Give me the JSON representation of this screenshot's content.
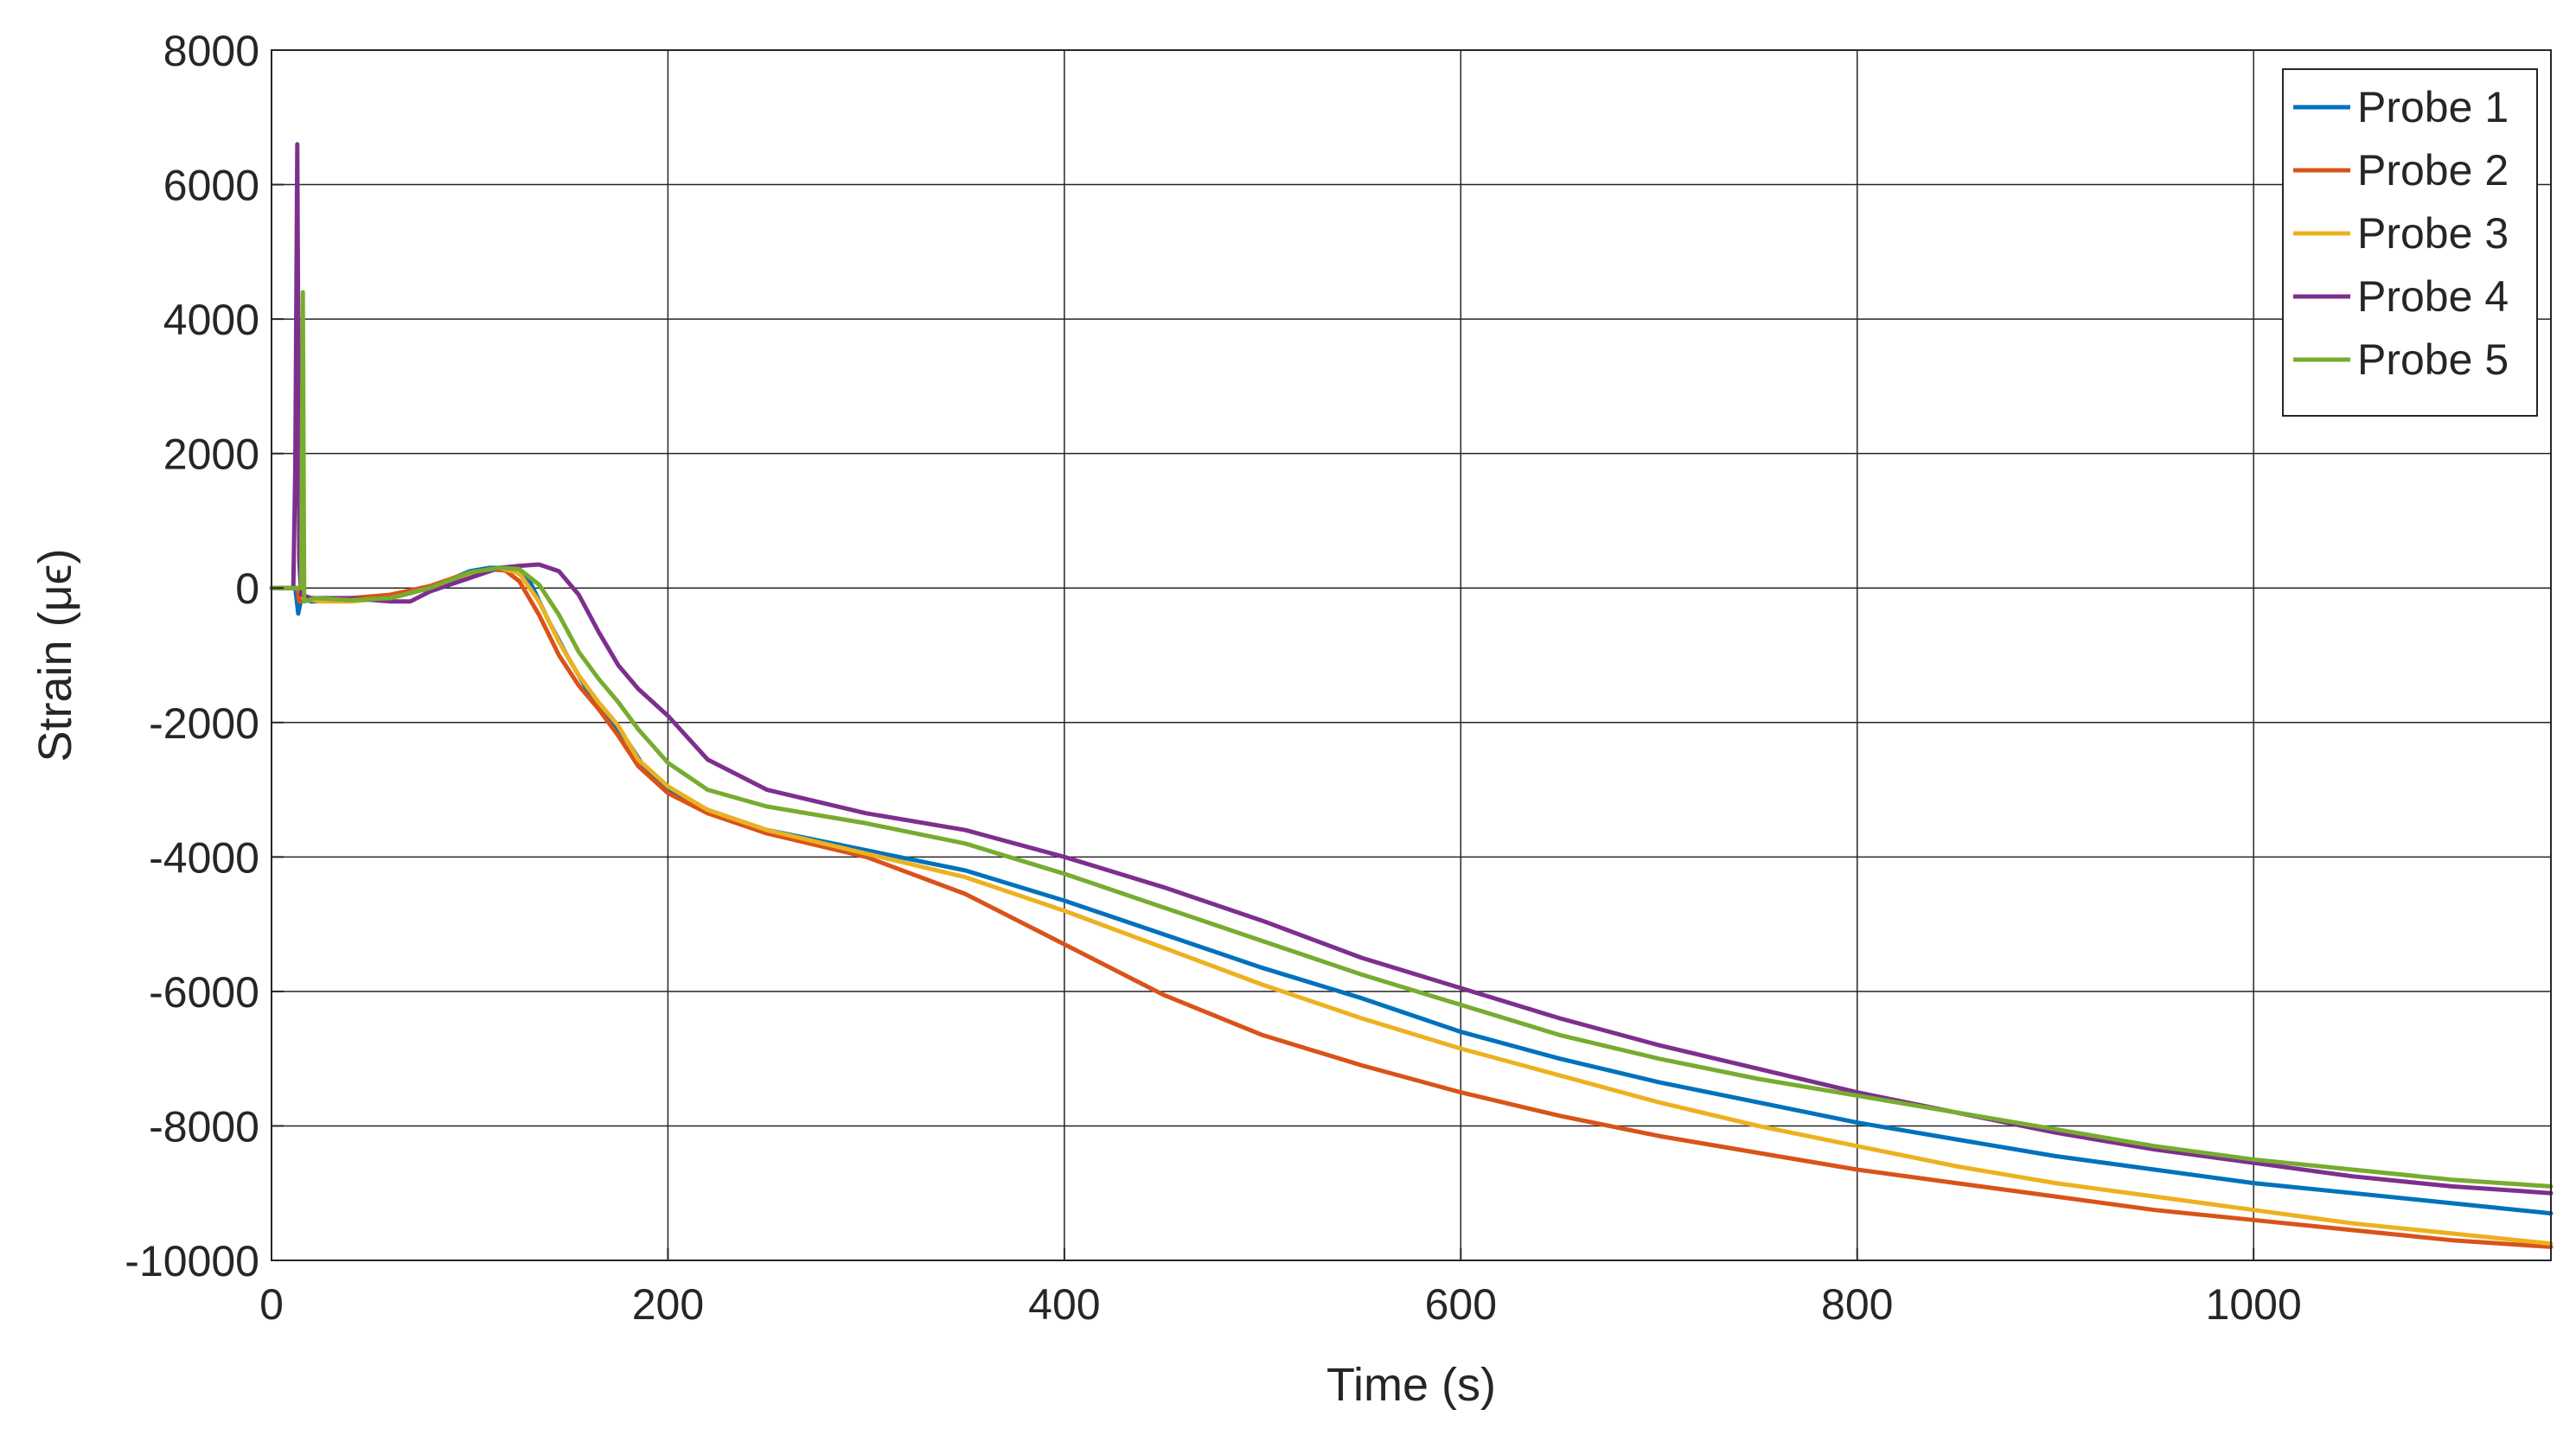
{
  "chart_data": {
    "type": "line",
    "title": "",
    "xlabel": "Time (s)",
    "ylabel": "Strain (μϵ)",
    "xlim": [
      0,
      1150
    ],
    "ylim": [
      -10000,
      8000
    ],
    "xticks": [
      0,
      200,
      400,
      600,
      800,
      1000
    ],
    "yticks": [
      8000,
      6000,
      4000,
      2000,
      0,
      -2000,
      -4000,
      -6000,
      -8000,
      -10000
    ],
    "xtick_labels": [
      "0",
      "200",
      "400",
      "600",
      "800",
      "1000"
    ],
    "ytick_labels": [
      "8000",
      "6000",
      "4000",
      "2000",
      "0",
      "-2000",
      "-4000",
      "-6000",
      "-8000",
      "-10000"
    ],
    "grid": true,
    "legend_position": "top-right",
    "series": [
      {
        "name": "Probe 1",
        "color": "#0072BD",
        "points": [
          [
            0,
            0
          ],
          [
            12,
            0
          ],
          [
            13.5,
            -380
          ],
          [
            15,
            -150
          ],
          [
            20,
            -200
          ],
          [
            40,
            -170
          ],
          [
            60,
            -150
          ],
          [
            80,
            0
          ],
          [
            100,
            250
          ],
          [
            110,
            300
          ],
          [
            120,
            300
          ],
          [
            130,
            120
          ],
          [
            140,
            -500
          ],
          [
            150,
            -1050
          ],
          [
            160,
            -1550
          ],
          [
            170,
            -1900
          ],
          [
            180,
            -2300
          ],
          [
            190,
            -2750
          ],
          [
            200,
            -3000
          ],
          [
            220,
            -3300
          ],
          [
            250,
            -3600
          ],
          [
            300,
            -3900
          ],
          [
            350,
            -4200
          ],
          [
            400,
            -4650
          ],
          [
            450,
            -5150
          ],
          [
            500,
            -5650
          ],
          [
            550,
            -6100
          ],
          [
            600,
            -6600
          ],
          [
            650,
            -7000
          ],
          [
            700,
            -7350
          ],
          [
            750,
            -7650
          ],
          [
            800,
            -7950
          ],
          [
            850,
            -8200
          ],
          [
            900,
            -8450
          ],
          [
            950,
            -8650
          ],
          [
            1000,
            -8850
          ],
          [
            1050,
            -9000
          ],
          [
            1100,
            -9150
          ],
          [
            1150,
            -9300
          ]
        ]
      },
      {
        "name": "Probe 2",
        "color": "#D95319",
        "points": [
          [
            0,
            0
          ],
          [
            13,
            0
          ],
          [
            14,
            -200
          ],
          [
            20,
            -180
          ],
          [
            40,
            -150
          ],
          [
            60,
            -100
          ],
          [
            80,
            30
          ],
          [
            100,
            230
          ],
          [
            110,
            280
          ],
          [
            118,
            260
          ],
          [
            125,
            100
          ],
          [
            135,
            -400
          ],
          [
            145,
            -1000
          ],
          [
            155,
            -1450
          ],
          [
            165,
            -1800
          ],
          [
            175,
            -2200
          ],
          [
            185,
            -2650
          ],
          [
            200,
            -3050
          ],
          [
            220,
            -3350
          ],
          [
            250,
            -3650
          ],
          [
            300,
            -4000
          ],
          [
            350,
            -4550
          ],
          [
            400,
            -5300
          ],
          [
            450,
            -6050
          ],
          [
            500,
            -6650
          ],
          [
            550,
            -7100
          ],
          [
            600,
            -7500
          ],
          [
            650,
            -7850
          ],
          [
            700,
            -8150
          ],
          [
            750,
            -8400
          ],
          [
            800,
            -8650
          ],
          [
            850,
            -8850
          ],
          [
            900,
            -9050
          ],
          [
            950,
            -9250
          ],
          [
            1000,
            -9400
          ],
          [
            1050,
            -9550
          ],
          [
            1100,
            -9700
          ],
          [
            1150,
            -9800
          ]
        ]
      },
      {
        "name": "Probe 3",
        "color": "#EDB120",
        "points": [
          [
            0,
            0
          ],
          [
            14,
            0
          ],
          [
            16,
            -150
          ],
          [
            25,
            -200
          ],
          [
            40,
            -200
          ],
          [
            60,
            -150
          ],
          [
            80,
            0
          ],
          [
            100,
            200
          ],
          [
            115,
            300
          ],
          [
            125,
            220
          ],
          [
            135,
            -200
          ],
          [
            145,
            -800
          ],
          [
            155,
            -1300
          ],
          [
            165,
            -1700
          ],
          [
            175,
            -2050
          ],
          [
            185,
            -2550
          ],
          [
            200,
            -2950
          ],
          [
            220,
            -3300
          ],
          [
            250,
            -3600
          ],
          [
            300,
            -3950
          ],
          [
            350,
            -4300
          ],
          [
            400,
            -4800
          ],
          [
            450,
            -5350
          ],
          [
            500,
            -5900
          ],
          [
            550,
            -6400
          ],
          [
            600,
            -6850
          ],
          [
            650,
            -7250
          ],
          [
            700,
            -7650
          ],
          [
            750,
            -8000
          ],
          [
            800,
            -8300
          ],
          [
            850,
            -8600
          ],
          [
            900,
            -8850
          ],
          [
            950,
            -9050
          ],
          [
            1000,
            -9250
          ],
          [
            1050,
            -9450
          ],
          [
            1100,
            -9600
          ],
          [
            1150,
            -9750
          ]
        ]
      },
      {
        "name": "Probe 4",
        "color": "#7E2F8E",
        "points": [
          [
            0,
            0
          ],
          [
            11,
            0
          ],
          [
            12,
            1800
          ],
          [
            13,
            6600
          ],
          [
            14,
            400
          ],
          [
            15,
            -100
          ],
          [
            20,
            -150
          ],
          [
            40,
            -150
          ],
          [
            60,
            -200
          ],
          [
            70,
            -200
          ],
          [
            80,
            -50
          ],
          [
            100,
            150
          ],
          [
            115,
            300
          ],
          [
            125,
            330
          ],
          [
            135,
            350
          ],
          [
            145,
            250
          ],
          [
            155,
            -100
          ],
          [
            165,
            -650
          ],
          [
            175,
            -1150
          ],
          [
            185,
            -1500
          ],
          [
            200,
            -1900
          ],
          [
            220,
            -2550
          ],
          [
            250,
            -3000
          ],
          [
            300,
            -3350
          ],
          [
            350,
            -3600
          ],
          [
            400,
            -4000
          ],
          [
            450,
            -4450
          ],
          [
            500,
            -4950
          ],
          [
            550,
            -5500
          ],
          [
            600,
            -5950
          ],
          [
            650,
            -6400
          ],
          [
            700,
            -6800
          ],
          [
            750,
            -7150
          ],
          [
            800,
            -7500
          ],
          [
            850,
            -7800
          ],
          [
            900,
            -8100
          ],
          [
            950,
            -8350
          ],
          [
            1000,
            -8550
          ],
          [
            1050,
            -8750
          ],
          [
            1100,
            -8900
          ],
          [
            1150,
            -9000
          ]
        ]
      },
      {
        "name": "Probe 5",
        "color": "#77AC30",
        "points": [
          [
            0,
            0
          ],
          [
            15,
            0
          ],
          [
            15.8,
            4400
          ],
          [
            16.5,
            -200
          ],
          [
            22,
            -150
          ],
          [
            40,
            -180
          ],
          [
            60,
            -150
          ],
          [
            80,
            0
          ],
          [
            100,
            230
          ],
          [
            115,
            300
          ],
          [
            125,
            280
          ],
          [
            135,
            50
          ],
          [
            145,
            -400
          ],
          [
            155,
            -950
          ],
          [
            165,
            -1350
          ],
          [
            175,
            -1700
          ],
          [
            185,
            -2100
          ],
          [
            200,
            -2600
          ],
          [
            220,
            -3000
          ],
          [
            250,
            -3250
          ],
          [
            300,
            -3500
          ],
          [
            350,
            -3800
          ],
          [
            400,
            -4250
          ],
          [
            450,
            -4750
          ],
          [
            500,
            -5250
          ],
          [
            550,
            -5750
          ],
          [
            600,
            -6200
          ],
          [
            650,
            -6650
          ],
          [
            700,
            -7000
          ],
          [
            750,
            -7300
          ],
          [
            800,
            -7550
          ],
          [
            850,
            -7800
          ],
          [
            900,
            -8050
          ],
          [
            950,
            -8300
          ],
          [
            1000,
            -8500
          ],
          [
            1050,
            -8650
          ],
          [
            1100,
            -8800
          ],
          [
            1150,
            -8900
          ]
        ]
      }
    ]
  }
}
